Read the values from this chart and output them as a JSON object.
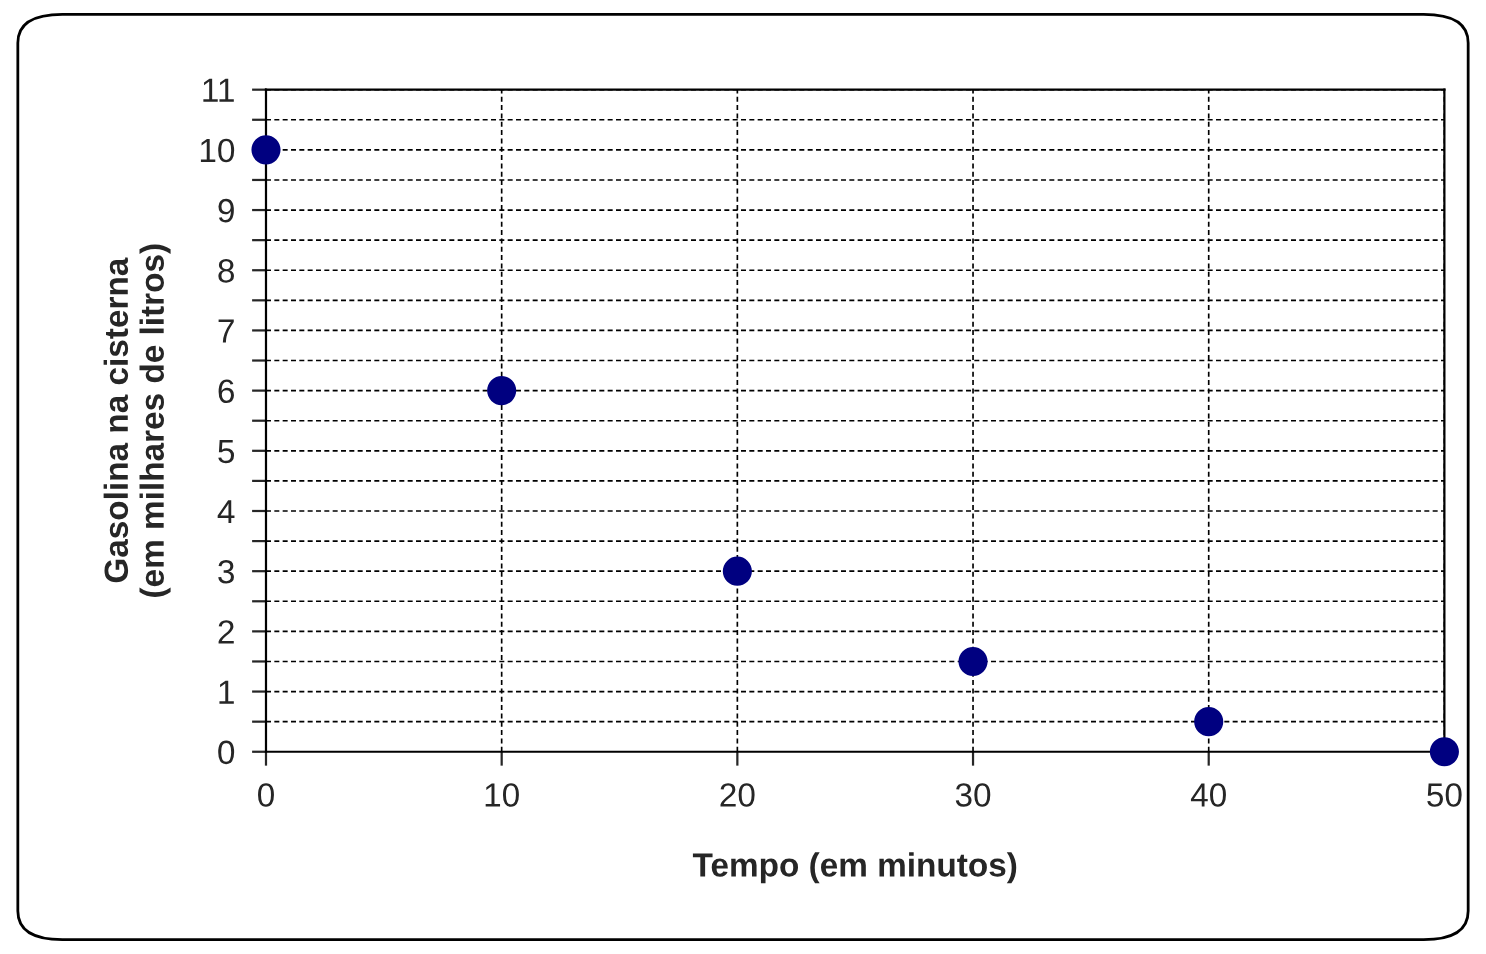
{
  "chart_data": {
    "type": "scatter",
    "xlabel": "Tempo (em minutos)",
    "ylabel": "Gasolina na cisterna\n(em milhares de litros)",
    "x": [
      0,
      10,
      20,
      30,
      40,
      50
    ],
    "series": [
      {
        "color": "#000080",
        "values": [
          10,
          6,
          3,
          1.5,
          0.5,
          0
        ]
      }
    ],
    "xlim": [
      0,
      50
    ],
    "xticks": [
      0,
      10,
      20,
      30,
      40,
      50
    ],
    "ylim": [
      0,
      11
    ],
    "yticks": [
      0,
      {
        "value": 0.5,
        "label": null
      },
      1,
      {
        "value": 1.5,
        "label": null
      },
      2,
      {
        "value": 2.5,
        "label": null
      },
      3,
      {
        "value": 3.5,
        "label": null
      },
      4,
      {
        "value": 4.5,
        "label": null
      },
      5,
      {
        "value": 5.5,
        "label": null
      },
      6,
      {
        "value": 6.5,
        "label": null
      },
      7,
      {
        "value": 7.5,
        "label": null
      },
      8,
      {
        "value": 8.5,
        "label": null
      },
      9,
      {
        "value": 9.5,
        "label": null
      },
      10,
      {
        "value": 10.5,
        "label": null
      },
      11
    ],
    "grid": true,
    "marker": "circle"
  }
}
